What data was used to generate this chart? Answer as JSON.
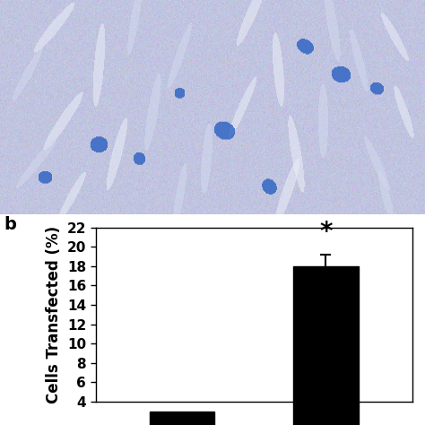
{
  "bar_values": [
    3.0,
    18.0
  ],
  "bar_errors": [
    0.5,
    1.2
  ],
  "bar_colors": [
    "#000000",
    "#000000"
  ],
  "bar_positions": [
    1,
    2
  ],
  "ylabel": "Cells Transfected (%)",
  "ylim": [
    4,
    22
  ],
  "yticks": [
    4,
    6,
    8,
    10,
    12,
    14,
    16,
    18,
    20,
    22
  ],
  "xlim": [
    0.4,
    2.6
  ],
  "bar_width": 0.45,
  "panel_label": "b",
  "asterisk_text": "*",
  "asterisk_y": 20.2,
  "asterisk_x": 2,
  "background_color": "#ffffff",
  "error_capsize": 4,
  "error_linewidth": 1.5,
  "bar_edge_color": "#000000",
  "tick_fontsize": 11,
  "label_fontsize": 12,
  "panel_fontsize": 14,
  "asterisk_fontsize": 20,
  "img_bg_r": 0.755,
  "img_bg_g": 0.769,
  "img_bg_b": 0.878
}
